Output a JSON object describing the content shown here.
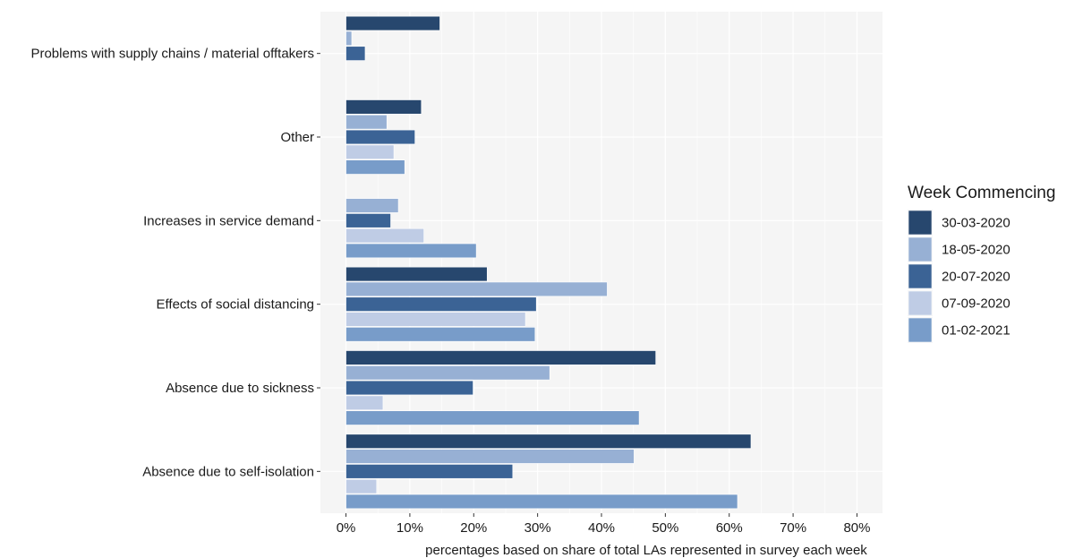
{
  "chart_data": {
    "type": "bar",
    "orientation": "horizontal",
    "categories": [
      "Problems with supply chains / material offtakers",
      "Other",
      "Increases in service demand",
      "Effects of social distancing",
      "Absence due to sickness",
      "Absence due to self-isolation"
    ],
    "series": [
      {
        "name": "30-03-2020",
        "color": "#27476e",
        "values": [
          14.7,
          11.8,
          null,
          22.1,
          48.5,
          63.4
        ]
      },
      {
        "name": "18-05-2020",
        "color": "#97b0d4",
        "values": [
          0.9,
          6.4,
          8.2,
          40.9,
          31.9,
          45.1
        ]
      },
      {
        "name": "20-07-2020",
        "color": "#3b6395",
        "values": [
          3.0,
          10.8,
          7.0,
          29.8,
          19.9,
          26.1
        ]
      },
      {
        "name": "07-09-2020",
        "color": "#bfcce5",
        "values": [
          null,
          7.5,
          12.2,
          28.1,
          5.8,
          4.8
        ]
      },
      {
        "name": "01-02-2021",
        "color": "#789cc9",
        "values": [
          null,
          9.2,
          20.4,
          29.6,
          45.9,
          61.3
        ]
      }
    ],
    "xlabel": "percentages based on share of total LAs represented in survey each week",
    "ylabel": "",
    "xlim": [
      -4,
      84
    ],
    "xticks": [
      0,
      10,
      20,
      30,
      40,
      50,
      60,
      70,
      80
    ],
    "xtick_labels": [
      "0%",
      "10%",
      "20%",
      "30%",
      "40%",
      "50%",
      "60%",
      "70%",
      "80%"
    ],
    "grid": true,
    "legend": {
      "title": "Week Commencing",
      "placement": "right"
    }
  }
}
